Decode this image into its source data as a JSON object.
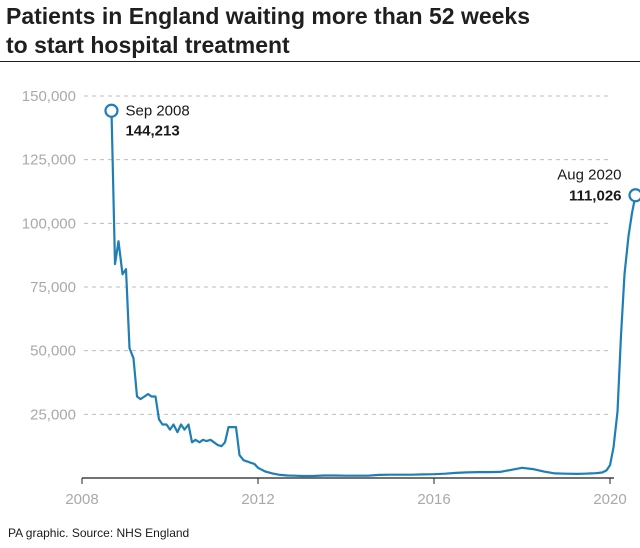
{
  "title_line1": "Patients in England waiting more than 52 weeks",
  "title_line2": "to start hospital treatment",
  "source": "PA graphic. Source: NHS England",
  "colors": {
    "line": "#1f7fb5",
    "grid": "#bdbdbd",
    "axis": "#1f1f1f",
    "tick": "#a9a9a9"
  },
  "chart_data": {
    "type": "line",
    "title": "Patients in England waiting more than 52 weeks to start hospital treatment",
    "xlabel": "",
    "ylabel": "",
    "xlim": [
      2008.0,
      2020.0
    ],
    "ylim": [
      0,
      150000
    ],
    "xticks": [
      2008,
      2012,
      2016,
      2020
    ],
    "xtick_labels": [
      "2008",
      "2012",
      "2016",
      "2020"
    ],
    "yticks": [
      25000,
      50000,
      75000,
      100000,
      125000,
      150000
    ],
    "ytick_labels": [
      "25,000",
      "50,000",
      "75,000",
      "100,000",
      "125,000",
      "150,000"
    ],
    "grid": true,
    "series": [
      {
        "name": "Patients waiting more than 52 weeks",
        "x": [
          2008.67,
          2008.75,
          2008.83,
          2008.92,
          2009.0,
          2009.08,
          2009.17,
          2009.25,
          2009.33,
          2009.42,
          2009.5,
          2009.58,
          2009.67,
          2009.75,
          2009.83,
          2009.92,
          2010.0,
          2010.08,
          2010.17,
          2010.25,
          2010.33,
          2010.42,
          2010.5,
          2010.58,
          2010.67,
          2010.75,
          2010.83,
          2010.92,
          2011.0,
          2011.08,
          2011.17,
          2011.25,
          2011.33,
          2011.42,
          2011.5,
          2011.58,
          2011.67,
          2011.75,
          2011.83,
          2011.92,
          2012.0,
          2012.17,
          2012.33,
          2012.5,
          2012.67,
          2012.83,
          2013.0,
          2013.25,
          2013.5,
          2013.75,
          2014.0,
          2014.25,
          2014.5,
          2014.75,
          2015.0,
          2015.25,
          2015.5,
          2015.75,
          2016.0,
          2016.25,
          2016.5,
          2016.75,
          2017.0,
          2017.25,
          2017.5,
          2017.75,
          2018.0,
          2018.25,
          2018.5,
          2018.75,
          2019.0,
          2019.25,
          2019.42,
          2019.58,
          2019.67,
          2019.75,
          2019.83,
          2019.92,
          2020.0,
          2020.08,
          2020.17,
          2020.25,
          2020.33,
          2020.42,
          2020.5,
          2020.58
        ],
        "values": [
          144213,
          84000,
          93000,
          80000,
          82000,
          51000,
          47000,
          32000,
          31000,
          32000,
          33000,
          32000,
          32000,
          23000,
          21000,
          21000,
          19000,
          21000,
          18000,
          21000,
          19000,
          21000,
          14000,
          15000,
          14000,
          15000,
          14500,
          15000,
          14000,
          13000,
          12500,
          14000,
          20000,
          20000,
          20000,
          9000,
          7000,
          6500,
          6000,
          5500,
          4000,
          2500,
          1800,
          1200,
          1000,
          900,
          800,
          800,
          1000,
          1000,
          900,
          900,
          900,
          1200,
          1300,
          1300,
          1300,
          1400,
          1500,
          1700,
          2000,
          2200,
          2300,
          2300,
          2400,
          3200,
          4000,
          3500,
          2500,
          1800,
          1700,
          1600,
          1700,
          1800,
          1900,
          2000,
          2200,
          3000,
          5000,
          12000,
          26000,
          56000,
          80000,
          95000,
          104000,
          111026
        ]
      }
    ],
    "annotations": [
      {
        "label": "Sep 2008",
        "value_label": "144,213",
        "x": 2008.67,
        "y": 144213
      },
      {
        "label": "Aug 2020",
        "value_label": "111,026",
        "x": 2020.58,
        "y": 111026
      }
    ]
  }
}
